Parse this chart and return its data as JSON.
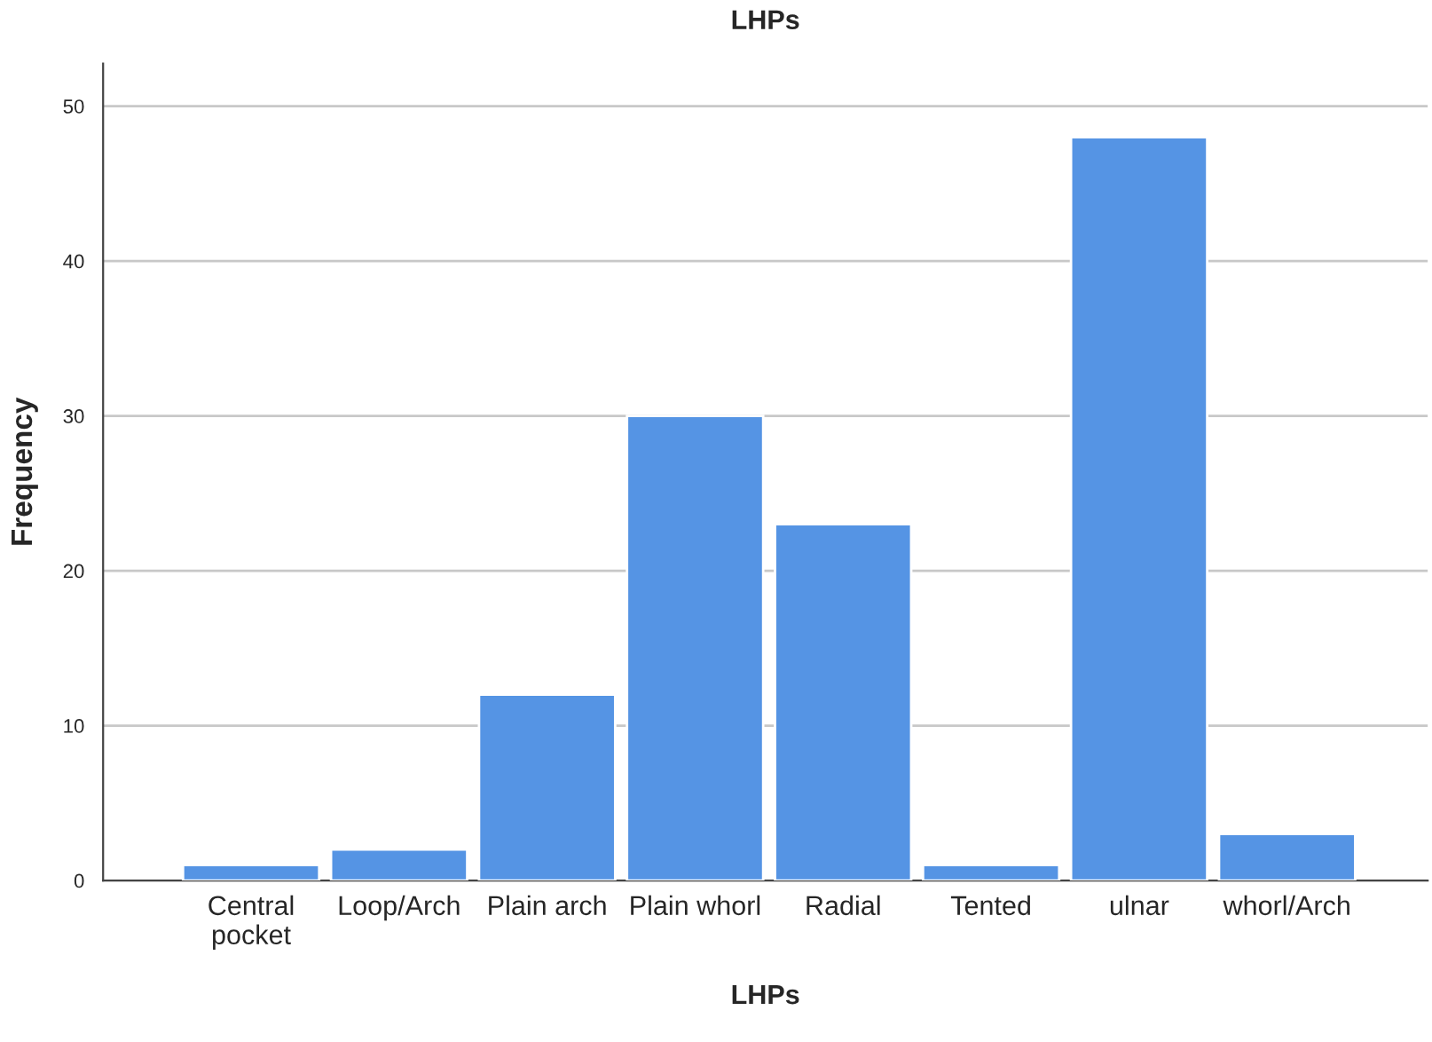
{
  "chart_data": {
    "type": "bar",
    "title": "LHPs",
    "xlabel": "LHPs",
    "ylabel": "Frequency",
    "categories": [
      "Central\npocket",
      "Loop/Arch",
      "Plain arch",
      "Plain whorl",
      "Radial",
      "Tented",
      "ulnar",
      "whorl/Arch"
    ],
    "values": [
      1,
      2,
      12,
      30,
      23,
      1,
      48,
      3
    ],
    "color": "#5594e4",
    "ylim": [
      0,
      52.75
    ],
    "yticks": [
      0,
      10,
      20,
      30,
      40,
      50
    ],
    "grid": "y"
  }
}
